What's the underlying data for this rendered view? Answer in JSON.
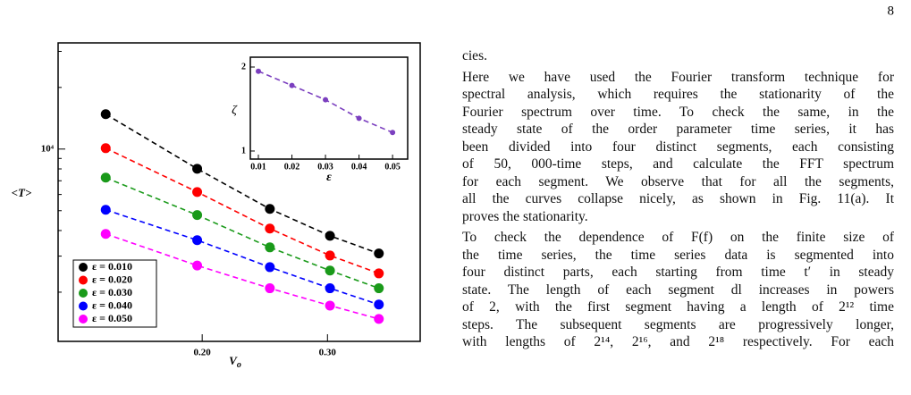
{
  "page_number": "8",
  "chart_data": [
    {
      "type": "scatter-line",
      "ylabel": "<T>",
      "xlabel": {
        "main": "V",
        "sub": "o"
      },
      "x": [
        0.123,
        0.196,
        0.254,
        0.302,
        0.341
      ],
      "xlim": [
        0.085,
        0.374
      ],
      "xticks": [
        {
          "value": 0.2,
          "label": "0.20"
        },
        {
          "value": 0.3,
          "label": "0.30"
        }
      ],
      "ylim": [
        1150,
        33000
      ],
      "log_y": true,
      "yticks": [
        {
          "value": 10000,
          "label": "10⁴"
        }
      ],
      "yticks_minor": [
        2000,
        3000,
        4000,
        5000,
        6000,
        7000,
        8000,
        9000,
        20000,
        30000
      ],
      "legend": "lower left",
      "series": [
        {
          "name": "ε = 0.010",
          "color": "#000000",
          "values": [
            14800,
            8015,
            5100,
            3770,
            3090
          ]
        },
        {
          "name": "ε = 0.020",
          "color": "#ff0000",
          "values": [
            10100,
            6170,
            4090,
            3020,
            2470
          ]
        },
        {
          "name": "ε = 0.030",
          "color": "#1a9a1a",
          "values": [
            7250,
            4760,
            3310,
            2550,
            2090
          ]
        },
        {
          "name": "ε = 0.040",
          "color": "#0000ff",
          "values": [
            5050,
            3590,
            2650,
            2090,
            1740
          ]
        },
        {
          "name": "ε = 0.050",
          "color": "#ff00ff",
          "values": [
            3850,
            2700,
            2090,
            1720,
            1480
          ]
        }
      ]
    },
    {
      "type": "scatter-line",
      "ylabel": "ζ",
      "xlabel": "ε",
      "x": [
        0.01,
        0.02,
        0.03,
        0.04,
        0.05
      ],
      "xlim": [
        0.0076,
        0.0545
      ],
      "xticks": [
        0.01,
        0.02,
        0.03,
        0.04,
        0.05
      ],
      "ylim": [
        0.904,
        2.117
      ],
      "yticks": [
        1,
        2
      ],
      "series": [
        {
          "color": "#7b3fbf",
          "values": [
            1.95,
            1.78,
            1.61,
            1.39,
            1.22
          ]
        }
      ]
    }
  ],
  "text": {
    "paragraphs": [
      [
        "cies."
      ],
      [
        "Here we have used the Fourier transform technique for",
        "spectral analysis, which requires the stationarity of the",
        "Fourier spectrum over time. To check the same, in the",
        "steady state of the order parameter time series, it has",
        "been divided into four distinct segments, each consisting",
        "of 50, 000-time steps, and calculate the FFT spectrum",
        "for each segment. We observe that for all the segments,",
        "all the curves collapse nicely, as shown in Fig. 11(a). It",
        "proves the stationarity."
      ],
      [
        "To check the dependence of F(f) on the finite size of",
        "the time series, the time series data is segmented into",
        "four distinct parts, each starting from time t′ in steady",
        "state. The length of each segment dl increases in powers",
        "of 2, with the first segment having a length of 2¹² time",
        "steps. The subsequent segments are progressively longer,",
        "with lengths of 2¹⁴, 2¹⁶, and 2¹⁸ respectively. For each"
      ]
    ]
  }
}
